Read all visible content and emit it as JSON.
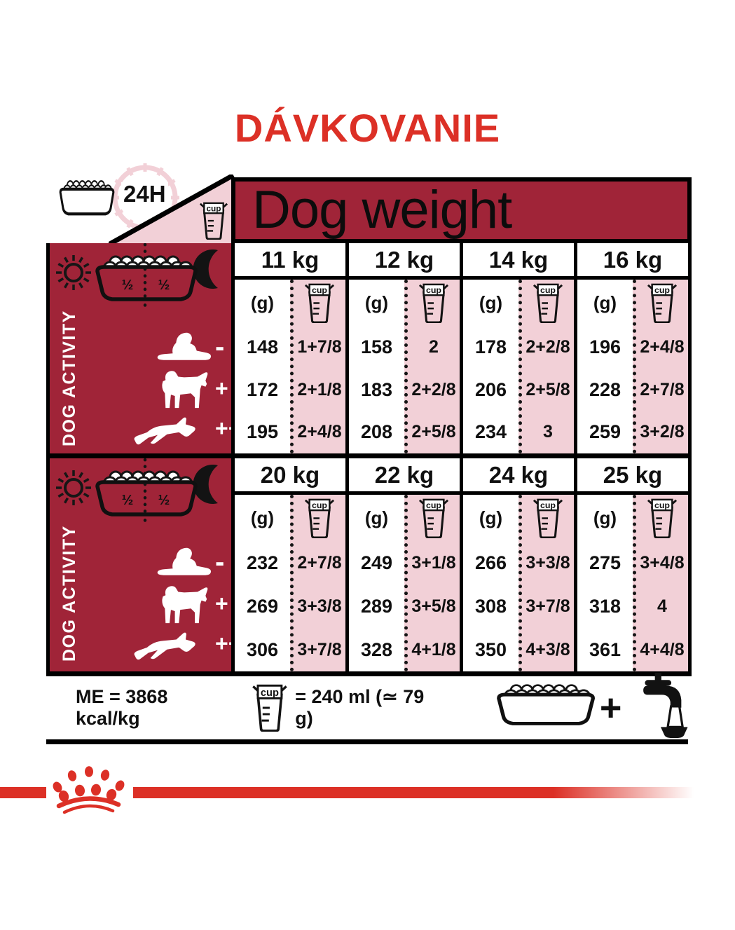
{
  "title": "DÁVKOVANIE",
  "labels": {
    "h24": "24H",
    "cup": "cup",
    "grams": "(g)",
    "half": "½",
    "plus_sep": "+"
  },
  "table": {
    "header": "Dog weight",
    "activity_label": "DOG ACTIVITY",
    "activity_levels": [
      "-",
      "+",
      "++"
    ],
    "sections": [
      {
        "weights": [
          {
            "kg": "11 kg",
            "grams": [
              "148",
              "172",
              "195"
            ],
            "cups": [
              "1+7/8",
              "2+1/8",
              "2+4/8"
            ]
          },
          {
            "kg": "12 kg",
            "grams": [
              "158",
              "183",
              "208"
            ],
            "cups": [
              "2",
              "2+2/8",
              "2+5/8"
            ]
          },
          {
            "kg": "14 kg",
            "grams": [
              "178",
              "206",
              "234"
            ],
            "cups": [
              "2+2/8",
              "2+5/8",
              "3"
            ]
          },
          {
            "kg": "16 kg",
            "grams": [
              "196",
              "228",
              "259"
            ],
            "cups": [
              "2+4/8",
              "2+7/8",
              "3+2/8"
            ]
          }
        ]
      },
      {
        "weights": [
          {
            "kg": "20 kg",
            "grams": [
              "232",
              "269",
              "306"
            ],
            "cups": [
              "2+7/8",
              "3+3/8",
              "3+7/8"
            ]
          },
          {
            "kg": "22 kg",
            "grams": [
              "249",
              "289",
              "328"
            ],
            "cups": [
              "3+1/8",
              "3+5/8",
              "4+1/8"
            ]
          },
          {
            "kg": "24 kg",
            "grams": [
              "266",
              "308",
              "350"
            ],
            "cups": [
              "3+3/8",
              "3+7/8",
              "4+3/8"
            ]
          },
          {
            "kg": "25 kg",
            "grams": [
              "275",
              "318",
              "361"
            ],
            "cups": [
              "3+4/8",
              "4",
              "4+4/8"
            ]
          }
        ]
      }
    ]
  },
  "legend": {
    "me": "ME = 3868 kcal/kg",
    "cup_equiv": "= 240 ml (≃ 79 g)",
    "plus": "+"
  },
  "colors": {
    "red": "#DC3026",
    "dark_red": "#A02438",
    "pink": "#F2D0D7",
    "ink": "#101010"
  }
}
